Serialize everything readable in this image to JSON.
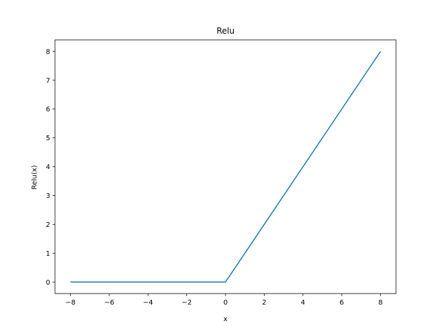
{
  "chart_data": {
    "type": "line",
    "title": "Relu",
    "xlabel": "x",
    "ylabel": "Relu(x)",
    "xlim": [
      -8.8,
      8.8
    ],
    "ylim": [
      -0.4,
      8.4
    ],
    "xticks": [
      -8,
      -6,
      -4,
      -2,
      0,
      2,
      4,
      6,
      8
    ],
    "xtick_labels": [
      "−8",
      "−6",
      "−4",
      "−2",
      "0",
      "2",
      "4",
      "6",
      "8"
    ],
    "yticks": [
      0,
      1,
      2,
      3,
      4,
      5,
      6,
      7,
      8
    ],
    "ytick_labels": [
      "0",
      "1",
      "2",
      "3",
      "4",
      "5",
      "6",
      "7",
      "8"
    ],
    "grid": false,
    "series": [
      {
        "name": "Relu",
        "color": "#1f77b4",
        "x": [
          -8,
          0,
          8
        ],
        "y": [
          0,
          0,
          8
        ]
      }
    ]
  }
}
